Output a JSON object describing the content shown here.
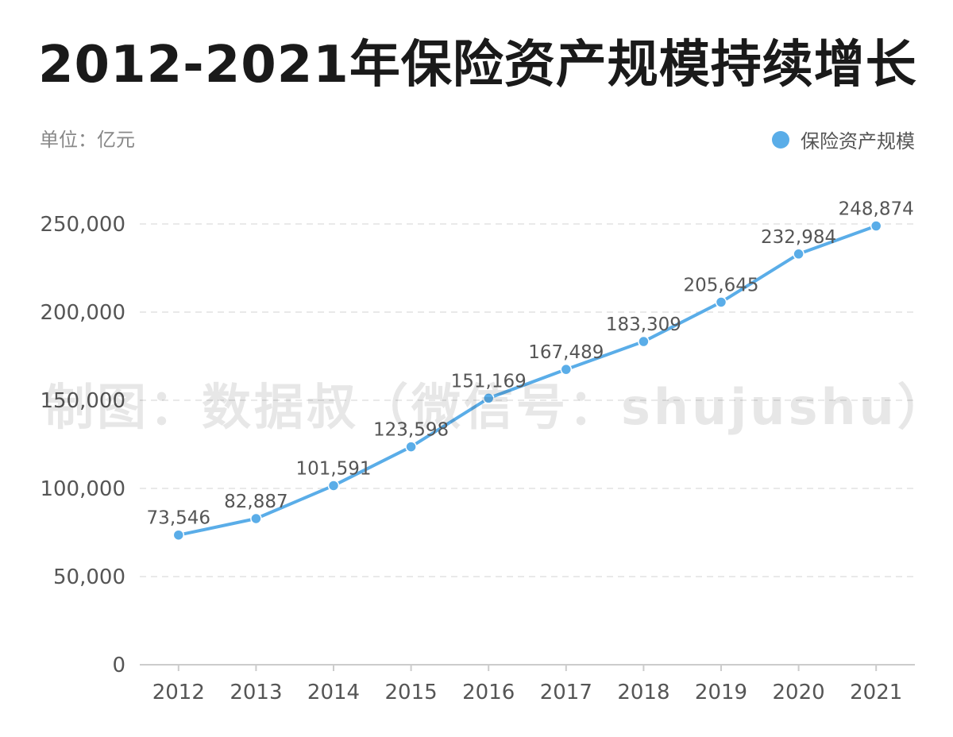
{
  "title": "2012-2021年保险资产规模持续增长",
  "unit_label": "单位：亿元",
  "watermark": "制图：数据叔（微信号：shujushu）",
  "colors": {
    "series": "#5aade8",
    "grid": "#e2e2e2",
    "axis": "#cccccc",
    "tick_text": "#555555",
    "data_label": "#555555"
  },
  "chart_data": {
    "type": "line",
    "title": "2012-2021年保险资产规模持续增长",
    "ylabel": "单位：亿元",
    "x": [
      "2012",
      "2013",
      "2014",
      "2015",
      "2016",
      "2017",
      "2018",
      "2019",
      "2020",
      "2021"
    ],
    "series": [
      {
        "name": "保险资产规模",
        "values": [
          73546,
          82887,
          101591,
          123598,
          151169,
          167489,
          183309,
          205645,
          232984,
          248874
        ],
        "labels": [
          "73,546",
          "82,887",
          "101,591",
          "123,598",
          "151,169",
          "167,489",
          "183,309",
          "205,645",
          "232,984",
          "248,874"
        ]
      }
    ],
    "ylim": [
      0,
      250000
    ],
    "yticks": [
      0,
      50000,
      100000,
      150000,
      200000,
      250000
    ],
    "ytick_labels": [
      "0",
      "50,000",
      "100,000",
      "150,000",
      "200,000",
      "250,000"
    ],
    "grid": true,
    "legend": "top-right"
  }
}
